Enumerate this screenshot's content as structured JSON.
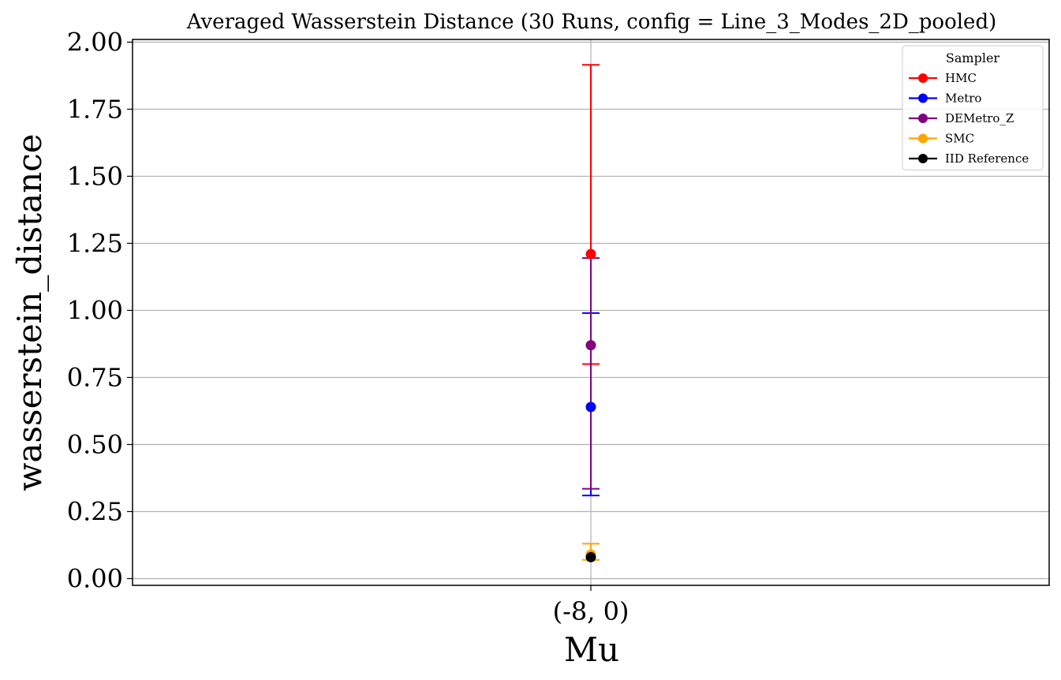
{
  "chart_data": {
    "type": "scatter",
    "title": "Averaged Wasserstein Distance (30 Runs, config = Line_3_Modes_2D_pooled)",
    "xlabel": "Mu",
    "ylabel": "wasserstein_distance",
    "categories": [
      "(-8, 0)"
    ],
    "ylim": [
      -0.025,
      2.01
    ],
    "yticks": [
      "0.00",
      "0.25",
      "0.50",
      "0.75",
      "1.00",
      "1.25",
      "1.50",
      "1.75",
      "2.00"
    ],
    "grid": true,
    "legend": {
      "title": "Sampler",
      "position": "top-right"
    },
    "series": [
      {
        "name": "HMC",
        "color": "#ff0000",
        "values": [
          1.21
        ],
        "err_low": [
          0.8
        ],
        "err_high": [
          1.915
        ]
      },
      {
        "name": "Metro",
        "color": "#0000ff",
        "values": [
          0.64
        ],
        "err_low": [
          0.31
        ],
        "err_high": [
          0.99
        ]
      },
      {
        "name": "DEMetro_Z",
        "color": "#800080",
        "values": [
          0.87
        ],
        "err_low": [
          0.335
        ],
        "err_high": [
          1.195
        ]
      },
      {
        "name": "SMC",
        "color": "#ffa500",
        "values": [
          0.09
        ],
        "err_low": [
          0.07
        ],
        "err_high": [
          0.13
        ]
      },
      {
        "name": "IID Reference",
        "color": "#000000",
        "values": [
          0.08
        ],
        "err_low": [
          0.08
        ],
        "err_high": [
          0.08
        ]
      }
    ]
  }
}
